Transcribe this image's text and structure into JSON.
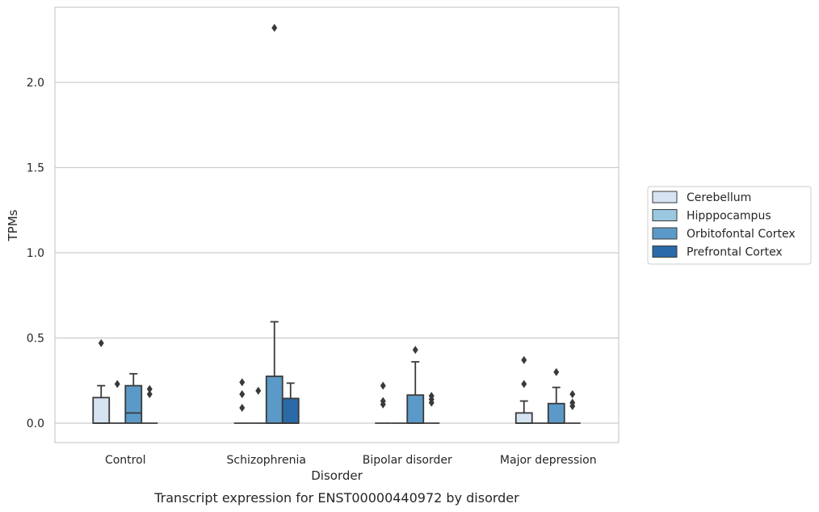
{
  "chart_data": {
    "type": "boxplot",
    "caption": "Transcript expression for ENST00000440972 by disorder",
    "xlabel": "Disorder",
    "ylabel": "TPMs",
    "ylim": [
      -0.11,
      2.45
    ],
    "yticks": [
      0.0,
      0.5,
      1.0,
      1.5,
      2.0
    ],
    "ytick_labels": [
      "0.0",
      "0.5",
      "1.0",
      "1.5",
      "2.0"
    ],
    "grid": "horizontal",
    "legend_position": "right",
    "categories": [
      "Control",
      "Schizophrenia",
      "Bipolar disorder",
      "Major depression"
    ],
    "series": [
      {
        "name": "Cerebellum",
        "color": "#d5e3f2",
        "boxes": [
          {
            "q1": 0.0,
            "median": 0.0,
            "q3": 0.15,
            "whisker_low": 0.0,
            "whisker_high": 0.22,
            "outliers": [
              0.47
            ]
          },
          {
            "q1": 0.0,
            "median": 0.0,
            "q3": 0.0,
            "whisker_low": 0.0,
            "whisker_high": 0.0,
            "outliers": [
              0.09,
              0.17,
              0.24
            ]
          },
          {
            "q1": 0.0,
            "median": 0.0,
            "q3": 0.0,
            "whisker_low": 0.0,
            "whisker_high": 0.0,
            "outliers": [
              0.11,
              0.13,
              0.22
            ]
          },
          {
            "q1": 0.0,
            "median": 0.0,
            "q3": 0.06,
            "whisker_low": 0.0,
            "whisker_high": 0.13,
            "outliers": [
              0.23,
              0.37
            ]
          }
        ]
      },
      {
        "name": "Hipppocampus",
        "color": "#9ac8e0",
        "boxes": [
          {
            "q1": 0.0,
            "median": 0.0,
            "q3": 0.0,
            "whisker_low": 0.0,
            "whisker_high": 0.0,
            "outliers": [
              0.23
            ]
          },
          {
            "q1": 0.0,
            "median": 0.0,
            "q3": 0.0,
            "whisker_low": 0.0,
            "whisker_high": 0.0,
            "outliers": [
              0.19
            ]
          },
          {
            "q1": 0.0,
            "median": 0.0,
            "q3": 0.0,
            "whisker_low": 0.0,
            "whisker_high": 0.0,
            "outliers": []
          },
          {
            "q1": 0.0,
            "median": 0.0,
            "q3": 0.0,
            "whisker_low": 0.0,
            "whisker_high": 0.0,
            "outliers": []
          }
        ]
      },
      {
        "name": "Orbitofontal Cortex",
        "color": "#5b9ac8",
        "boxes": [
          {
            "q1": 0.0,
            "median": 0.06,
            "q3": 0.22,
            "whisker_low": 0.0,
            "whisker_high": 0.29,
            "outliers": []
          },
          {
            "q1": 0.0,
            "median": 0.0,
            "q3": 0.275,
            "whisker_low": 0.0,
            "whisker_high": 0.595,
            "outliers": [
              2.32
            ]
          },
          {
            "q1": 0.0,
            "median": 0.0,
            "q3": 0.165,
            "whisker_low": 0.0,
            "whisker_high": 0.36,
            "outliers": [
              0.43
            ]
          },
          {
            "q1": 0.0,
            "median": 0.0,
            "q3": 0.115,
            "whisker_low": 0.0,
            "whisker_high": 0.21,
            "outliers": [
              0.3
            ]
          }
        ]
      },
      {
        "name": "Prefrontal Cortex",
        "color": "#2a6aa8",
        "boxes": [
          {
            "q1": 0.0,
            "median": 0.0,
            "q3": 0.0,
            "whisker_low": 0.0,
            "whisker_high": 0.0,
            "outliers": [
              0.17,
              0.2
            ]
          },
          {
            "q1": 0.0,
            "median": 0.0,
            "q3": 0.145,
            "whisker_low": 0.0,
            "whisker_high": 0.235,
            "outliers": []
          },
          {
            "q1": 0.0,
            "median": 0.0,
            "q3": 0.0,
            "whisker_low": 0.0,
            "whisker_high": 0.0,
            "outliers": [
              0.12,
              0.14,
              0.16
            ]
          },
          {
            "q1": 0.0,
            "median": 0.0,
            "q3": 0.0,
            "whisker_low": 0.0,
            "whisker_high": 0.0,
            "outliers": [
              0.1,
              0.12,
              0.17
            ]
          }
        ]
      }
    ]
  }
}
